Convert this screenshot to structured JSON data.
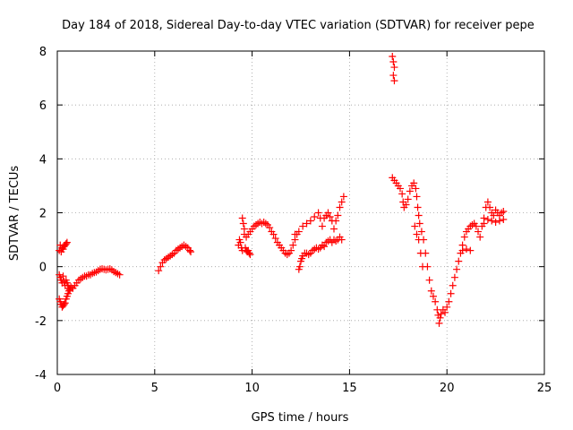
{
  "chart_data": {
    "type": "scatter",
    "title": "Day 184 of 2018, Sidereal Day-to-day VTEC variation (SDTVAR) for receiver pepe",
    "xlabel": "GPS time / hours",
    "ylabel": "SDTVAR / TECUs",
    "xlim": [
      0,
      25
    ],
    "ylim": [
      -4,
      8
    ],
    "xticks": [
      0,
      5,
      10,
      15,
      20,
      25
    ],
    "yticks": [
      -4,
      -2,
      0,
      2,
      4,
      6,
      8
    ],
    "grid": true,
    "marker": "+",
    "series": [
      {
        "name": "SDTVAR",
        "color": "#ff0000",
        "points": [
          [
            0.1,
            0.6
          ],
          [
            0.15,
            0.8
          ],
          [
            0.2,
            0.55
          ],
          [
            0.25,
            0.7
          ],
          [
            0.3,
            0.65
          ],
          [
            0.35,
            0.75
          ],
          [
            0.4,
            0.8
          ],
          [
            0.45,
            0.85
          ],
          [
            0.5,
            0.9
          ],
          [
            0.1,
            -0.3
          ],
          [
            0.15,
            -0.4
          ],
          [
            0.2,
            -0.5
          ],
          [
            0.25,
            -0.6
          ],
          [
            0.3,
            -0.35
          ],
          [
            0.35,
            -0.55
          ],
          [
            0.4,
            -0.7
          ],
          [
            0.45,
            -0.5
          ],
          [
            0.5,
            -0.6
          ],
          [
            0.55,
            -0.7
          ],
          [
            0.6,
            -0.8
          ],
          [
            0.1,
            -1.2
          ],
          [
            0.15,
            -1.3
          ],
          [
            0.2,
            -1.4
          ],
          [
            0.25,
            -1.5
          ],
          [
            0.3,
            -1.45
          ],
          [
            0.35,
            -1.4
          ],
          [
            0.4,
            -1.35
          ],
          [
            0.45,
            -1.2
          ],
          [
            0.5,
            -1.1
          ],
          [
            0.55,
            -1.0
          ],
          [
            0.6,
            -0.9
          ],
          [
            0.65,
            -0.85
          ],
          [
            0.7,
            -0.75
          ],
          [
            0.8,
            -0.8
          ],
          [
            0.9,
            -0.7
          ],
          [
            1.0,
            -0.6
          ],
          [
            1.1,
            -0.5
          ],
          [
            1.2,
            -0.45
          ],
          [
            1.3,
            -0.4
          ],
          [
            1.4,
            -0.35
          ],
          [
            1.5,
            -0.35
          ],
          [
            1.6,
            -0.3
          ],
          [
            1.7,
            -0.3
          ],
          [
            1.8,
            -0.25
          ],
          [
            1.9,
            -0.22
          ],
          [
            2.0,
            -0.2
          ],
          [
            2.1,
            -0.15
          ],
          [
            2.2,
            -0.1
          ],
          [
            2.3,
            -0.08
          ],
          [
            2.4,
            -0.1
          ],
          [
            2.5,
            -0.12
          ],
          [
            2.6,
            -0.1
          ],
          [
            2.7,
            -0.08
          ],
          [
            2.8,
            -0.12
          ],
          [
            2.9,
            -0.18
          ],
          [
            3.0,
            -0.22
          ],
          [
            3.1,
            -0.26
          ],
          [
            3.2,
            -0.3
          ],
          [
            5.2,
            -0.15
          ],
          [
            5.3,
            0.0
          ],
          [
            5.4,
            0.15
          ],
          [
            5.5,
            0.25
          ],
          [
            5.6,
            0.3
          ],
          [
            5.7,
            0.35
          ],
          [
            5.8,
            0.4
          ],
          [
            5.9,
            0.45
          ],
          [
            6.0,
            0.5
          ],
          [
            6.1,
            0.6
          ],
          [
            6.2,
            0.65
          ],
          [
            6.3,
            0.7
          ],
          [
            6.4,
            0.75
          ],
          [
            6.5,
            0.8
          ],
          [
            6.6,
            0.75
          ],
          [
            6.7,
            0.7
          ],
          [
            6.8,
            0.6
          ],
          [
            6.85,
            0.55
          ],
          [
            9.3,
            0.8
          ],
          [
            9.35,
            1.0
          ],
          [
            9.4,
            0.9
          ],
          [
            9.45,
            0.7
          ],
          [
            9.5,
            0.6
          ],
          [
            9.5,
            1.8
          ],
          [
            9.55,
            1.6
          ],
          [
            9.6,
            1.4
          ],
          [
            9.65,
            0.7
          ],
          [
            9.7,
            0.6
          ],
          [
            9.75,
            0.55
          ],
          [
            9.8,
            0.6
          ],
          [
            9.85,
            0.5
          ],
          [
            9.9,
            0.45
          ],
          [
            9.6,
            1.2
          ],
          [
            9.7,
            1.1
          ],
          [
            9.8,
            1.2
          ],
          [
            9.9,
            1.3
          ],
          [
            10.0,
            1.4
          ],
          [
            10.1,
            1.5
          ],
          [
            10.2,
            1.55
          ],
          [
            10.3,
            1.6
          ],
          [
            10.4,
            1.65
          ],
          [
            10.5,
            1.6
          ],
          [
            10.6,
            1.65
          ],
          [
            10.7,
            1.6
          ],
          [
            10.8,
            1.55
          ],
          [
            10.9,
            1.45
          ],
          [
            11.0,
            1.3
          ],
          [
            11.1,
            1.2
          ],
          [
            11.2,
            1.05
          ],
          [
            11.3,
            0.9
          ],
          [
            11.4,
            0.8
          ],
          [
            11.5,
            0.7
          ],
          [
            11.6,
            0.6
          ],
          [
            11.7,
            0.5
          ],
          [
            11.8,
            0.45
          ],
          [
            11.9,
            0.5
          ],
          [
            12.0,
            0.6
          ],
          [
            12.1,
            0.8
          ],
          [
            12.2,
            1.0
          ],
          [
            12.3,
            1.2
          ],
          [
            12.4,
            -0.1
          ],
          [
            12.45,
            0.0
          ],
          [
            12.5,
            0.2
          ],
          [
            12.55,
            0.3
          ],
          [
            12.6,
            0.4
          ],
          [
            12.7,
            0.5
          ],
          [
            12.8,
            0.5
          ],
          [
            12.9,
            0.45
          ],
          [
            13.0,
            0.5
          ],
          [
            13.1,
            0.6
          ],
          [
            13.2,
            0.65
          ],
          [
            13.3,
            0.7
          ],
          [
            13.4,
            0.65
          ],
          [
            13.5,
            0.7
          ],
          [
            13.6,
            0.8
          ],
          [
            13.7,
            0.75
          ],
          [
            13.8,
            0.9
          ],
          [
            13.9,
            0.95
          ],
          [
            14.0,
            1.0
          ],
          [
            14.1,
            0.9
          ],
          [
            14.2,
            1.0
          ],
          [
            14.3,
            0.95
          ],
          [
            14.4,
            1.0
          ],
          [
            14.5,
            1.1
          ],
          [
            14.6,
            1.0
          ],
          [
            12.2,
            1.2
          ],
          [
            12.4,
            1.3
          ],
          [
            12.6,
            1.5
          ],
          [
            12.8,
            1.6
          ],
          [
            13.0,
            1.7
          ],
          [
            13.2,
            1.85
          ],
          [
            13.4,
            2.0
          ],
          [
            13.5,
            1.8
          ],
          [
            13.6,
            1.5
          ],
          [
            13.7,
            1.8
          ],
          [
            13.8,
            1.9
          ],
          [
            13.9,
            2.0
          ],
          [
            14.0,
            1.85
          ],
          [
            14.1,
            1.7
          ],
          [
            14.2,
            1.4
          ],
          [
            14.3,
            1.7
          ],
          [
            14.4,
            1.9
          ],
          [
            14.5,
            2.2
          ],
          [
            14.6,
            2.4
          ],
          [
            14.7,
            2.6
          ],
          [
            17.2,
            7.8
          ],
          [
            17.25,
            7.6
          ],
          [
            17.3,
            7.4
          ],
          [
            17.25,
            7.1
          ],
          [
            17.3,
            6.9
          ],
          [
            17.2,
            3.3
          ],
          [
            17.3,
            3.2
          ],
          [
            17.4,
            3.1
          ],
          [
            17.5,
            3.0
          ],
          [
            17.6,
            2.9
          ],
          [
            17.7,
            2.7
          ],
          [
            17.75,
            2.4
          ],
          [
            17.8,
            2.2
          ],
          [
            17.9,
            2.3
          ],
          [
            18.0,
            2.5
          ],
          [
            18.1,
            2.8
          ],
          [
            18.2,
            3.0
          ],
          [
            18.3,
            3.1
          ],
          [
            18.4,
            2.9
          ],
          [
            18.45,
            2.6
          ],
          [
            18.5,
            2.2
          ],
          [
            18.55,
            1.9
          ],
          [
            18.6,
            1.6
          ],
          [
            18.7,
            1.3
          ],
          [
            18.8,
            1.0
          ],
          [
            18.9,
            0.5
          ],
          [
            19.0,
            0.0
          ],
          [
            19.1,
            -0.5
          ],
          [
            19.2,
            -0.9
          ],
          [
            19.3,
            -1.1
          ],
          [
            19.4,
            -1.3
          ],
          [
            18.35,
            1.5
          ],
          [
            18.45,
            1.2
          ],
          [
            18.55,
            1.0
          ],
          [
            18.65,
            0.5
          ],
          [
            18.75,
            0.0
          ],
          [
            19.5,
            -1.6
          ],
          [
            19.55,
            -1.8
          ],
          [
            19.6,
            -2.1
          ],
          [
            19.65,
            -1.9
          ],
          [
            19.7,
            -1.75
          ],
          [
            19.8,
            -1.6
          ],
          [
            19.9,
            -1.7
          ],
          [
            20.0,
            -1.5
          ],
          [
            20.1,
            -1.3
          ],
          [
            20.2,
            -1.0
          ],
          [
            20.3,
            -0.7
          ],
          [
            20.4,
            -0.4
          ],
          [
            20.5,
            -0.1
          ],
          [
            20.6,
            0.2
          ],
          [
            20.7,
            0.5
          ],
          [
            20.8,
            0.8
          ],
          [
            20.9,
            1.1
          ],
          [
            21.0,
            1.3
          ],
          [
            21.1,
            1.4
          ],
          [
            21.2,
            1.5
          ],
          [
            21.3,
            1.55
          ],
          [
            21.4,
            1.6
          ],
          [
            21.5,
            1.5
          ],
          [
            21.6,
            1.3
          ],
          [
            21.7,
            1.1
          ],
          [
            20.8,
            0.6
          ],
          [
            21.0,
            0.65
          ],
          [
            21.2,
            0.6
          ],
          [
            21.8,
            1.5
          ],
          [
            21.9,
            1.8
          ],
          [
            22.0,
            2.2
          ],
          [
            22.1,
            2.4
          ],
          [
            22.2,
            2.2
          ],
          [
            22.3,
            2.0
          ],
          [
            22.4,
            1.9
          ],
          [
            22.5,
            2.1
          ],
          [
            22.6,
            2.0
          ],
          [
            22.7,
            1.9
          ],
          [
            22.8,
            2.0
          ],
          [
            22.9,
            2.05
          ],
          [
            21.9,
            1.6
          ],
          [
            22.1,
            1.75
          ],
          [
            22.3,
            1.7
          ],
          [
            22.5,
            1.65
          ],
          [
            22.7,
            1.7
          ],
          [
            22.9,
            1.75
          ]
        ]
      }
    ]
  }
}
